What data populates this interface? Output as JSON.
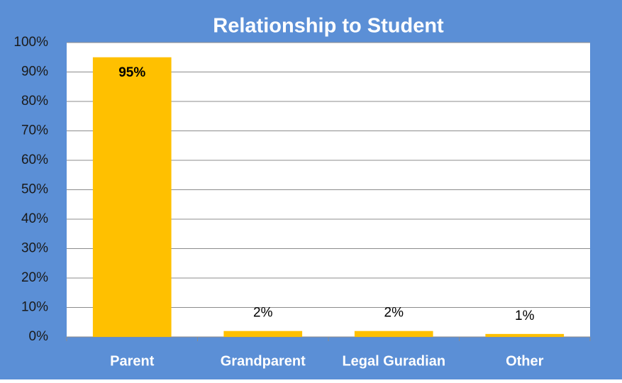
{
  "chart_data": {
    "type": "bar",
    "title": "Relationship to Student",
    "categories": [
      "Parent",
      "Grandparent",
      "Legal Guradian",
      "Other"
    ],
    "values": [
      95,
      2,
      2,
      1
    ],
    "value_labels": [
      "95%",
      "2%",
      "2%",
      "1%"
    ],
    "color": "#ffc000",
    "ylim": [
      0,
      100
    ],
    "yticks": [
      {
        "value": 0,
        "label": "0%"
      },
      {
        "value": 10,
        "label": "10%"
      },
      {
        "value": 20,
        "label": "20%"
      },
      {
        "value": 30,
        "label": "30%"
      },
      {
        "value": 40,
        "label": "40%"
      },
      {
        "value": 50,
        "label": "50%"
      },
      {
        "value": 60,
        "label": "60%"
      },
      {
        "value": 70,
        "label": "70%"
      },
      {
        "value": 80,
        "label": "80%"
      },
      {
        "value": 90,
        "label": "90%"
      },
      {
        "value": 100,
        "label": "100%"
      }
    ],
    "grid": true
  }
}
